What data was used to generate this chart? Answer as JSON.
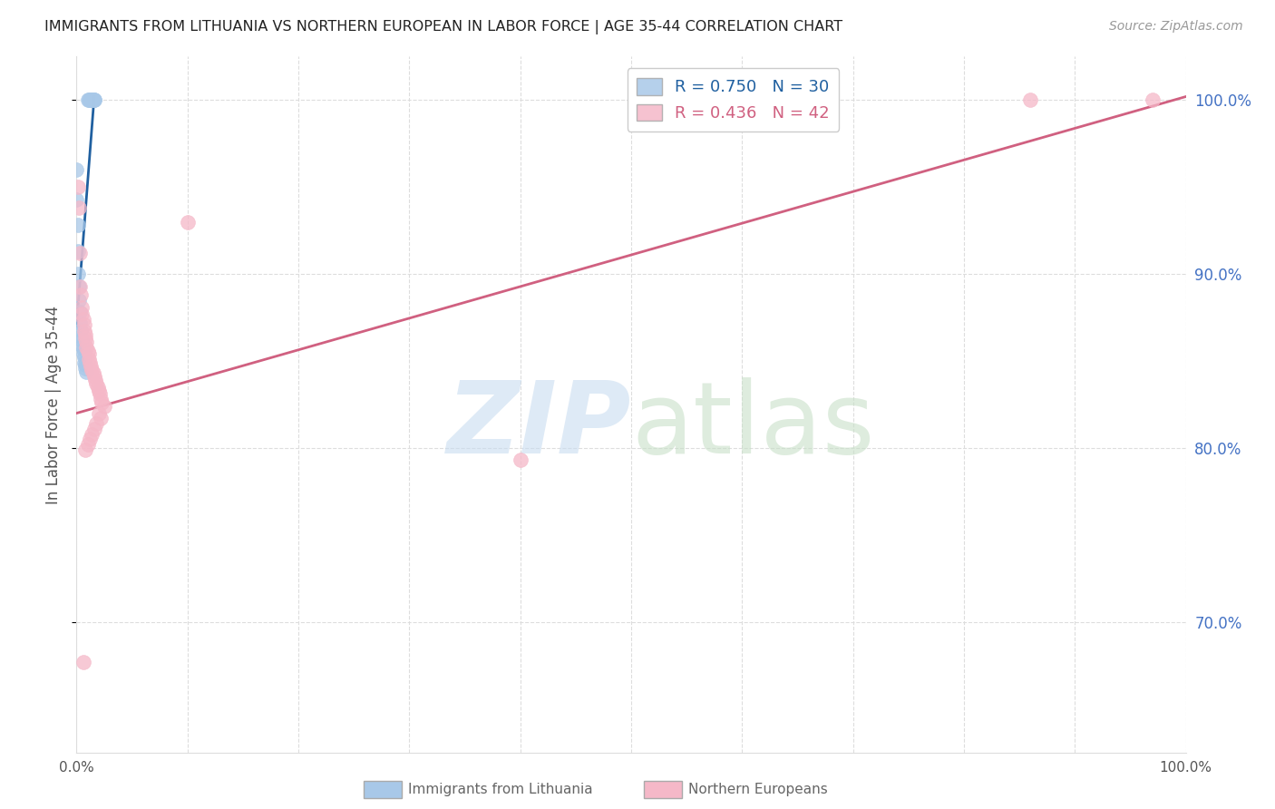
{
  "title": "IMMIGRANTS FROM LITHUANIA VS NORTHERN EUROPEAN IN LABOR FORCE | AGE 35-44 CORRELATION CHART",
  "source": "Source: ZipAtlas.com",
  "ylabel": "In Labor Force | Age 35-44",
  "xmin": 0.0,
  "xmax": 1.0,
  "ymin": 0.625,
  "ymax": 1.025,
  "yticks": [
    0.7,
    0.8,
    0.9,
    1.0
  ],
  "ytick_labels": [
    "70.0%",
    "80.0%",
    "90.0%",
    "100.0%"
  ],
  "xticks": [
    0.0,
    0.1,
    0.2,
    0.3,
    0.4,
    0.5,
    0.6,
    0.7,
    0.8,
    0.9,
    1.0
  ],
  "xtick_labels_show": [
    "0.0%",
    "100.0%"
  ],
  "blue_x": [
    0.0,
    0.0,
    0.001,
    0.001,
    0.001,
    0.002,
    0.002,
    0.003,
    0.003,
    0.004,
    0.004,
    0.005,
    0.005,
    0.006,
    0.006,
    0.007,
    0.007,
    0.008,
    0.008,
    0.009,
    0.01,
    0.011,
    0.012,
    0.013,
    0.013,
    0.014,
    0.015,
    0.015,
    0.016,
    0.016
  ],
  "blue_y": [
    0.96,
    0.943,
    0.928,
    0.913,
    0.9,
    0.893,
    0.885,
    0.878,
    0.872,
    0.868,
    0.864,
    0.862,
    0.859,
    0.857,
    0.854,
    0.852,
    0.849,
    0.848,
    0.846,
    0.844,
    1.0,
    1.0,
    1.0,
    1.0,
    1.0,
    1.0,
    1.0,
    1.0,
    1.0,
    1.0
  ],
  "pink_x": [
    0.001,
    0.002,
    0.003,
    0.003,
    0.004,
    0.005,
    0.005,
    0.006,
    0.007,
    0.007,
    0.008,
    0.008,
    0.009,
    0.009,
    0.01,
    0.011,
    0.011,
    0.012,
    0.013,
    0.014,
    0.015,
    0.016,
    0.017,
    0.018,
    0.019,
    0.02,
    0.021,
    0.022,
    0.023,
    0.025,
    0.02,
    0.022,
    0.018,
    0.016,
    0.014,
    0.012,
    0.01,
    0.008,
    0.4,
    0.86,
    0.97,
    0.1,
    0.006
  ],
  "pink_y": [
    0.95,
    0.938,
    0.912,
    0.893,
    0.888,
    0.881,
    0.877,
    0.874,
    0.871,
    0.867,
    0.865,
    0.863,
    0.861,
    0.858,
    0.856,
    0.854,
    0.851,
    0.849,
    0.847,
    0.845,
    0.843,
    0.841,
    0.839,
    0.837,
    0.835,
    0.833,
    0.831,
    0.828,
    0.826,
    0.824,
    0.82,
    0.817,
    0.814,
    0.811,
    0.808,
    0.805,
    0.802,
    0.799,
    0.793,
    1.0,
    1.0,
    0.93,
    0.677
  ],
  "blue_line_x": [
    0.0,
    0.016
  ],
  "blue_line_y": [
    0.87,
    1.002
  ],
  "pink_line_x": [
    0.0,
    1.0
  ],
  "pink_line_y": [
    0.82,
    1.002
  ],
  "title_color": "#222222",
  "source_color": "#999999",
  "ylabel_color": "#555555",
  "right_tick_color": "#4472c4",
  "xtick_color": "#555555",
  "grid_color": "#dddddd",
  "blue_scatter_color": "#a8c8e8",
  "pink_scatter_color": "#f5b8c8",
  "blue_line_color": "#2060a0",
  "pink_line_color": "#d06080",
  "legend_blue_text_color": "#2060a0",
  "legend_pink_text_color": "#d06080",
  "legend_blue_n_color": "#2060a0",
  "legend_pink_n_color": "#d06080",
  "watermark_zip_color": "#c8dcf0",
  "watermark_atlas_color": "#c8e0c8",
  "bottom_legend_color": "#666666"
}
